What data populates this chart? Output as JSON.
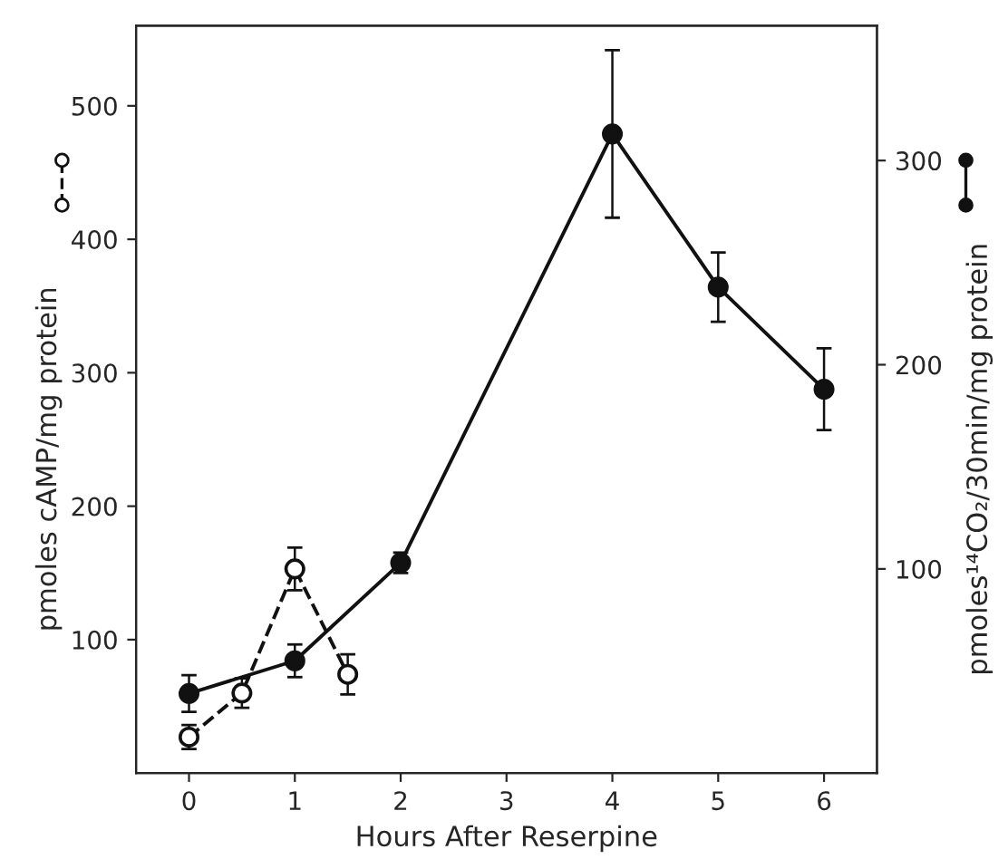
{
  "chart_data": {
    "type": "line",
    "xlabel": "Hours After Reserpine",
    "ylabel": "pmoles cAMP/mg protein",
    "y2label": "pmoles¹⁴CO₂/30min/mg protein",
    "xlim": [
      -0.5,
      6.5
    ],
    "xticks": [
      0,
      1,
      2,
      3,
      4,
      5,
      6
    ],
    "ylim": [
      0,
      560
    ],
    "yticks": [
      100,
      200,
      300,
      400,
      500
    ],
    "y2lim": [
      0,
      366
    ],
    "y2ticks": [
      100,
      200,
      300
    ],
    "grid": false,
    "legend": false,
    "marker": "circle",
    "series": [
      {
        "color": "#111111",
        "line_style": "dashed",
        "x": [
          0,
          0.5,
          1,
          1.5
        ],
        "values": [
          27,
          60,
          153,
          74
        ],
        "errors": [
          9,
          11,
          16,
          15
        ]
      },
      {
        "color": "#111111",
        "line_style": "solid",
        "axis": "y2",
        "x": [
          0,
          1,
          2,
          4,
          5,
          6
        ],
        "values": [
          39,
          55,
          103,
          313,
          238,
          188
        ],
        "errors": [
          9,
          8,
          5,
          41,
          17,
          20
        ]
      }
    ]
  }
}
